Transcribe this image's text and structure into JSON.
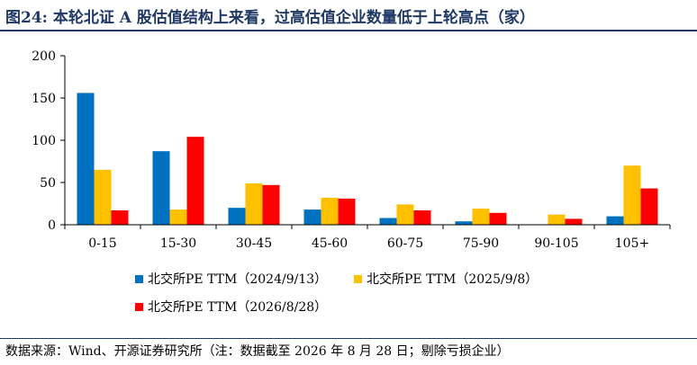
{
  "header": {
    "title": "图24:  本轮北证 A 股估值结构上来看，过高估值企业数量低于上轮高点（家）"
  },
  "footer": {
    "source": "数据来源：Wind、开源证券研究所（注：数据截至 2026 年 8 月 28 日；剔除亏损企业）"
  },
  "chart_data": {
    "type": "bar",
    "categories": [
      "0-15",
      "15-30",
      "30-45",
      "45-60",
      "60-75",
      "75-90",
      "90-105",
      "105+"
    ],
    "series": [
      {
        "name": "北交所PE TTM（2024/9/13）",
        "color": "#0070c0",
        "values": [
          156,
          87,
          20,
          18,
          8,
          4,
          0,
          10
        ]
      },
      {
        "name": "北交所PE TTM（2025/9/8）",
        "color": "#ffc000",
        "values": [
          65,
          18,
          49,
          32,
          24,
          19,
          12,
          70
        ]
      },
      {
        "name": "北交所PE TTM（2026/8/28）",
        "color": "#ff0000",
        "values": [
          17,
          104,
          47,
          31,
          17,
          14,
          7,
          43
        ]
      }
    ],
    "ylim": [
      0,
      200
    ],
    "yticks": [
      0,
      50,
      100,
      150,
      200
    ],
    "grid": false,
    "legend": "bottom"
  }
}
